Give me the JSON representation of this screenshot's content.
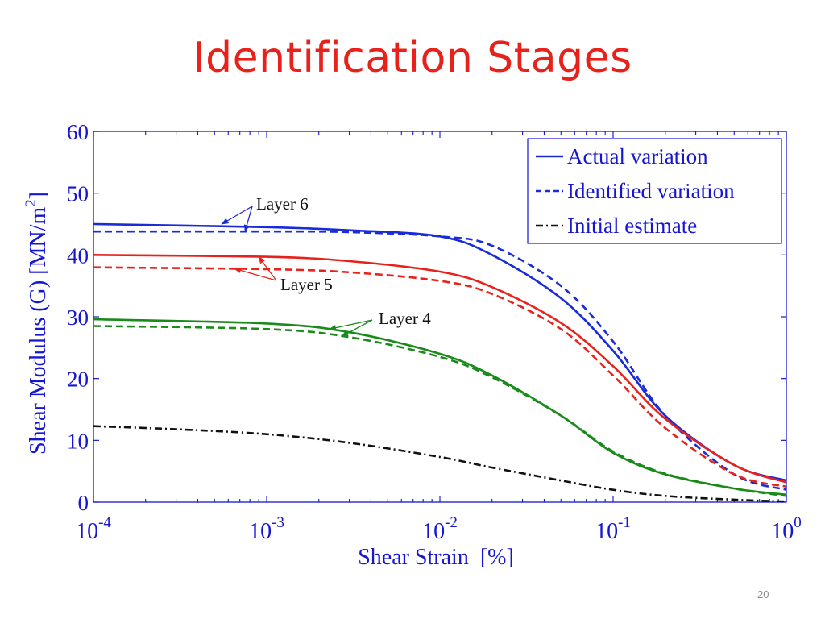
{
  "slide": {
    "title": "Identification Stages",
    "number": "20"
  },
  "colors": {
    "title": "#e8221b",
    "axis": "#1515d2",
    "layer6": "#1a2bd8",
    "layer5": "#e8221b",
    "layer4": "#1a8a1a",
    "initial": "#111111"
  },
  "chart_data": {
    "type": "line",
    "x_scale": "log",
    "xlim": [
      0.0001,
      1
    ],
    "ylim": [
      0,
      60
    ],
    "grid": false,
    "xlabel": "Shear Strain  [%]",
    "ylabel": "Shear Modulus (G) [MN/m",
    "ylabel_sup": "2",
    "ylabel_close": "]",
    "x_ticks": [
      {
        "value": 0.0001,
        "base": "10",
        "exp": "-4"
      },
      {
        "value": 0.001,
        "base": "10",
        "exp": "-3"
      },
      {
        "value": 0.01,
        "base": "10",
        "exp": "-2"
      },
      {
        "value": 0.1,
        "base": "10",
        "exp": "-1"
      },
      {
        "value": 1,
        "base": "10",
        "exp": "0"
      }
    ],
    "y_ticks": [
      {
        "value": 0,
        "label": "0"
      },
      {
        "value": 10,
        "label": "10"
      },
      {
        "value": 20,
        "label": "20"
      },
      {
        "value": 30,
        "label": "30"
      },
      {
        "value": 40,
        "label": "40"
      },
      {
        "value": 50,
        "label": "50"
      },
      {
        "value": 60,
        "label": "60"
      }
    ],
    "legend_position": "top-right",
    "legend": [
      {
        "label": "Actual variation",
        "style": "solid"
      },
      {
        "label": "Identified variation",
        "style": "dashed"
      },
      {
        "label": "Initial estimate",
        "style": "dashdot"
      }
    ],
    "series": [
      {
        "layer": "6",
        "style": "solid",
        "colorKey": "layer6",
        "x": [
          0.0001,
          0.001,
          0.003,
          0.01,
          0.02,
          0.05,
          0.1,
          0.2,
          0.5,
          1
        ],
        "y": [
          45,
          44.5,
          44,
          43,
          40,
          33,
          24.5,
          14,
          6,
          3.5
        ]
      },
      {
        "layer": "6",
        "style": "dashed",
        "colorKey": "layer6",
        "x": [
          0.0001,
          0.001,
          0.003,
          0.01,
          0.02,
          0.05,
          0.1,
          0.2,
          0.5,
          1
        ],
        "y": [
          43.8,
          43.8,
          43.7,
          43,
          41.5,
          35,
          26,
          14,
          4.5,
          2
        ]
      },
      {
        "layer": "5",
        "style": "solid",
        "colorKey": "layer5",
        "x": [
          0.0001,
          0.001,
          0.003,
          0.01,
          0.02,
          0.05,
          0.1,
          0.2,
          0.5,
          1
        ],
        "y": [
          40,
          39.7,
          39,
          37.3,
          34.8,
          29,
          22,
          13.5,
          6,
          3.2
        ]
      },
      {
        "layer": "5",
        "style": "dashed",
        "colorKey": "layer5",
        "x": [
          0.0001,
          0.001,
          0.003,
          0.01,
          0.02,
          0.05,
          0.1,
          0.2,
          0.5,
          1
        ],
        "y": [
          38,
          37.7,
          37.2,
          35.8,
          33.7,
          28,
          20.5,
          12,
          4.5,
          2.5
        ]
      },
      {
        "layer": "4",
        "style": "solid",
        "colorKey": "layer4",
        "x": [
          0.0001,
          0.001,
          0.003,
          0.01,
          0.02,
          0.05,
          0.1,
          0.2,
          0.5,
          1
        ],
        "y": [
          29.6,
          28.9,
          27.5,
          24,
          20.5,
          14,
          8,
          4.5,
          2.2,
          1.2
        ]
      },
      {
        "layer": "4",
        "style": "dashed",
        "colorKey": "layer4",
        "x": [
          0.0001,
          0.001,
          0.003,
          0.01,
          0.02,
          0.05,
          0.1,
          0.2,
          0.5,
          1
        ],
        "y": [
          28.5,
          28,
          26.7,
          23.5,
          20.2,
          14,
          8.2,
          4.6,
          2.2,
          1
        ]
      },
      {
        "layer": "initial",
        "style": "dashdot",
        "colorKey": "initial",
        "x": [
          0.0001,
          0.0003,
          0.001,
          0.003,
          0.01,
          0.02,
          0.05,
          0.1,
          0.2,
          0.5,
          1
        ],
        "y": [
          12.3,
          11.8,
          11,
          9.6,
          7.3,
          5.6,
          3.5,
          2,
          1,
          0.4,
          0.1
        ]
      }
    ],
    "annotations": [
      {
        "text": "Layer 6",
        "colorKey": "layer6",
        "points": [
          {
            "x": 0.00055,
            "y": 45
          },
          {
            "x": 0.00075,
            "y": 43.8
          }
        ]
      },
      {
        "text": "Layer 5",
        "colorKey": "layer5",
        "points": [
          {
            "x": 0.0009,
            "y": 39.7
          },
          {
            "x": 0.00065,
            "y": 37.8
          }
        ]
      },
      {
        "text": "Layer 4",
        "colorKey": "layer4",
        "points": [
          {
            "x": 0.0023,
            "y": 28
          },
          {
            "x": 0.0027,
            "y": 26.8
          }
        ]
      }
    ]
  }
}
